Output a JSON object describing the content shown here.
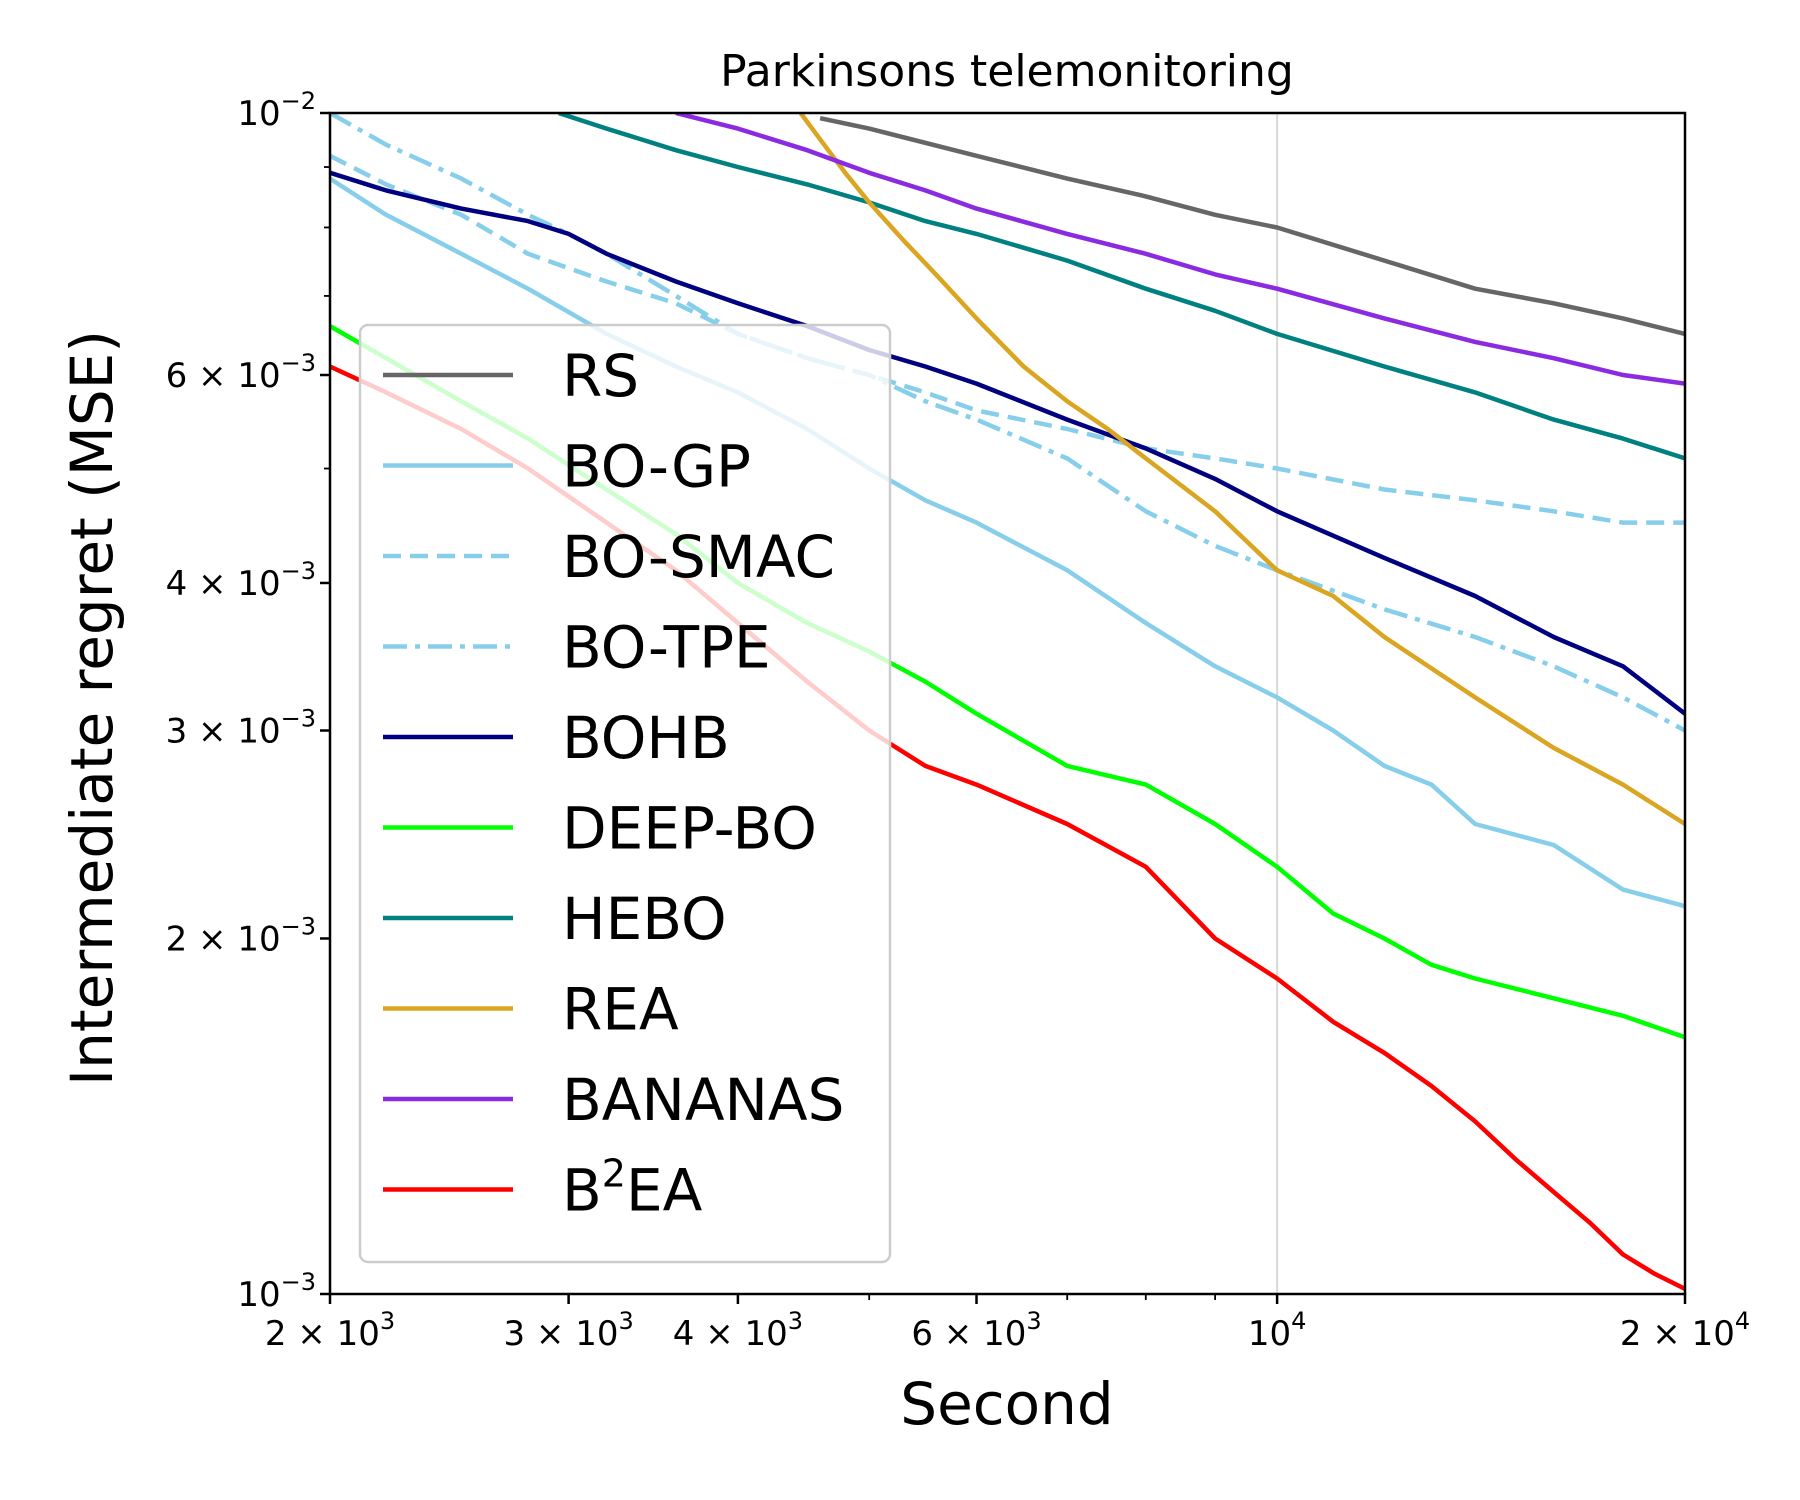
{
  "chart_data": {
    "type": "line",
    "title": "Parkinsons telemonitoring",
    "xlabel": "Second",
    "ylabel": "Intermediate regret (MSE)",
    "xscale": "log",
    "yscale": "log",
    "xlim": [
      2000,
      20000
    ],
    "ylim": [
      0.001,
      0.01
    ],
    "grid": "vertical line at x = 10^4",
    "legend_position": "center-left",
    "x_ticks": [
      {
        "value": 2000,
        "base": "2 × 10",
        "exp": "3"
      },
      {
        "value": 3000,
        "base": "3 × 10",
        "exp": "3"
      },
      {
        "value": 4000,
        "base": "4 × 10",
        "exp": "3"
      },
      {
        "value": 6000,
        "base": "6 × 10",
        "exp": "3"
      },
      {
        "value": 10000,
        "base": "10",
        "exp": "4"
      },
      {
        "value": 20000,
        "base": "2 × 10",
        "exp": "4"
      }
    ],
    "y_ticks": [
      {
        "value": 0.001,
        "base": "10",
        "exp": "−3"
      },
      {
        "value": 0.002,
        "base": "2 × 10",
        "exp": "−3"
      },
      {
        "value": 0.003,
        "base": "3 × 10",
        "exp": "−3"
      },
      {
        "value": 0.004,
        "base": "4 × 10",
        "exp": "−3"
      },
      {
        "value": 0.006,
        "base": "6 × 10",
        "exp": "−3"
      },
      {
        "value": 0.01,
        "base": "10",
        "exp": "−2"
      }
    ],
    "series": [
      {
        "name": "RS",
        "label_base": "RS",
        "color": "#666666",
        "dash": "solid",
        "x": [
          4600,
          5000,
          6000,
          7000,
          8000,
          9000,
          10000,
          12000,
          14000,
          16000,
          18000,
          20000
        ],
        "y": [
          0.0099,
          0.0097,
          0.0092,
          0.0088,
          0.0085,
          0.0082,
          0.008,
          0.0075,
          0.0071,
          0.0069,
          0.0067,
          0.0065
        ]
      },
      {
        "name": "BO-GP",
        "label_base": "BO-GP",
        "color": "#87ceeb",
        "dash": "solid",
        "x": [
          2000,
          2200,
          2500,
          2800,
          3200,
          3600,
          4000,
          4500,
          5000,
          5500,
          6000,
          7000,
          8000,
          9000,
          10000,
          11000,
          12000,
          13000,
          14000,
          16000,
          18000,
          20000
        ],
        "y": [
          0.0088,
          0.0082,
          0.0076,
          0.0071,
          0.0065,
          0.0061,
          0.0058,
          0.0054,
          0.005,
          0.0047,
          0.0045,
          0.0041,
          0.0037,
          0.0034,
          0.0032,
          0.003,
          0.0028,
          0.0027,
          0.0025,
          0.0024,
          0.0022,
          0.00213
        ]
      },
      {
        "name": "BO-SMAC",
        "label_base": "BO-SMAC",
        "color": "#87ceeb",
        "dash": "dashed",
        "x": [
          2000,
          2200,
          2500,
          2800,
          3200,
          3600,
          4000,
          4500,
          5000,
          5500,
          6000,
          7000,
          8000,
          9000,
          10000,
          12000,
          14000,
          16000,
          18000,
          20000
        ],
        "y": [
          0.0092,
          0.0087,
          0.0082,
          0.0076,
          0.0072,
          0.0069,
          0.0065,
          0.0062,
          0.006,
          0.0058,
          0.0056,
          0.0054,
          0.0052,
          0.0051,
          0.005,
          0.0048,
          0.0047,
          0.0046,
          0.0045,
          0.0045
        ]
      },
      {
        "name": "BO-TPE",
        "label_base": "BO-TPE",
        "color": "#87ceeb",
        "dash": "dashdot",
        "x": [
          2000,
          2200,
          2500,
          2800,
          3000,
          3200,
          3600,
          4000,
          4500,
          5000,
          5500,
          6000,
          7000,
          8000,
          9000,
          10000,
          12000,
          14000,
          16000,
          18000,
          20000
        ],
        "y": [
          0.01,
          0.0094,
          0.0088,
          0.0082,
          0.0079,
          0.0076,
          0.007,
          0.0065,
          0.0062,
          0.006,
          0.0057,
          0.0055,
          0.0051,
          0.0046,
          0.0043,
          0.0041,
          0.0038,
          0.0036,
          0.0034,
          0.0032,
          0.003
        ]
      },
      {
        "name": "BOHB",
        "label_base": "BOHB",
        "color": "#000080",
        "dash": "solid",
        "x": [
          2000,
          2200,
          2500,
          2800,
          3000,
          3200,
          3600,
          4000,
          4500,
          5000,
          5500,
          6000,
          7000,
          8000,
          9000,
          10000,
          12000,
          14000,
          16000,
          18000,
          20000
        ],
        "y": [
          0.0089,
          0.0086,
          0.0083,
          0.0081,
          0.0079,
          0.0076,
          0.0072,
          0.0069,
          0.0066,
          0.0063,
          0.0061,
          0.0059,
          0.0055,
          0.0052,
          0.0049,
          0.0046,
          0.0042,
          0.0039,
          0.0036,
          0.0034,
          0.0031
        ]
      },
      {
        "name": "DEEP-BO",
        "label_base": "DEEP-BO",
        "color": "#00ff00",
        "dash": "solid",
        "x": [
          2000,
          2200,
          2500,
          2800,
          3200,
          3600,
          4000,
          4500,
          5000,
          5500,
          6000,
          7000,
          8000,
          9000,
          10000,
          11000,
          12000,
          13000,
          14000,
          16000,
          18000,
          20000
        ],
        "y": [
          0.0066,
          0.0062,
          0.0057,
          0.0053,
          0.0048,
          0.0044,
          0.004,
          0.0037,
          0.0035,
          0.0033,
          0.0031,
          0.0028,
          0.0027,
          0.0025,
          0.0023,
          0.0021,
          0.002,
          0.0019,
          0.00185,
          0.00178,
          0.00172,
          0.00165
        ]
      },
      {
        "name": "HEBO",
        "label_base": "HEBO",
        "color": "#008080",
        "dash": "solid",
        "x": [
          2950,
          3200,
          3600,
          4000,
          4500,
          5000,
          5500,
          6000,
          7000,
          8000,
          9000,
          10000,
          12000,
          14000,
          16000,
          18000,
          20000
        ],
        "y": [
          0.01,
          0.0097,
          0.0093,
          0.009,
          0.0087,
          0.0084,
          0.0081,
          0.0079,
          0.0075,
          0.0071,
          0.0068,
          0.0065,
          0.0061,
          0.0058,
          0.0055,
          0.0053,
          0.0051
        ]
      },
      {
        "name": "REA",
        "label_base": "REA",
        "color": "#daa520",
        "dash": "solid",
        "x": [
          4450,
          4600,
          4800,
          5000,
          5300,
          5600,
          6000,
          6500,
          7000,
          7500,
          8000,
          9000,
          10000,
          11000,
          12000,
          14000,
          16000,
          18000,
          20000
        ],
        "y": [
          0.01,
          0.0095,
          0.0089,
          0.0084,
          0.0078,
          0.0073,
          0.0067,
          0.0061,
          0.0057,
          0.0054,
          0.0051,
          0.0046,
          0.0041,
          0.0039,
          0.0036,
          0.0032,
          0.0029,
          0.0027,
          0.0025
        ]
      },
      {
        "name": "BANANAS",
        "label_base": "BANANAS",
        "color": "#8a2be2",
        "dash": "solid",
        "x": [
          3600,
          4000,
          4500,
          5000,
          5500,
          6000,
          7000,
          8000,
          9000,
          10000,
          12000,
          14000,
          16000,
          18000,
          20000
        ],
        "y": [
          0.01,
          0.0097,
          0.0093,
          0.0089,
          0.0086,
          0.0083,
          0.0079,
          0.0076,
          0.0073,
          0.0071,
          0.0067,
          0.0064,
          0.0062,
          0.006,
          0.0059
        ]
      },
      {
        "name": "B²EA",
        "label_base": "B",
        "label_sup": "2",
        "label_tail": "EA",
        "color": "#ff0000",
        "dash": "solid",
        "x": [
          2000,
          2200,
          2500,
          2800,
          3200,
          3600,
          4000,
          4500,
          5000,
          5500,
          6000,
          7000,
          8000,
          9000,
          10000,
          11000,
          12000,
          13000,
          14000,
          15000,
          16000,
          17000,
          18000,
          19000,
          20000
        ],
        "y": [
          0.0061,
          0.0058,
          0.0054,
          0.005,
          0.0045,
          0.0041,
          0.0037,
          0.0033,
          0.003,
          0.0028,
          0.0027,
          0.0025,
          0.0023,
          0.002,
          0.00185,
          0.0017,
          0.0016,
          0.0015,
          0.0014,
          0.0013,
          0.00122,
          0.00115,
          0.00108,
          0.00104,
          0.00101
        ]
      }
    ]
  }
}
